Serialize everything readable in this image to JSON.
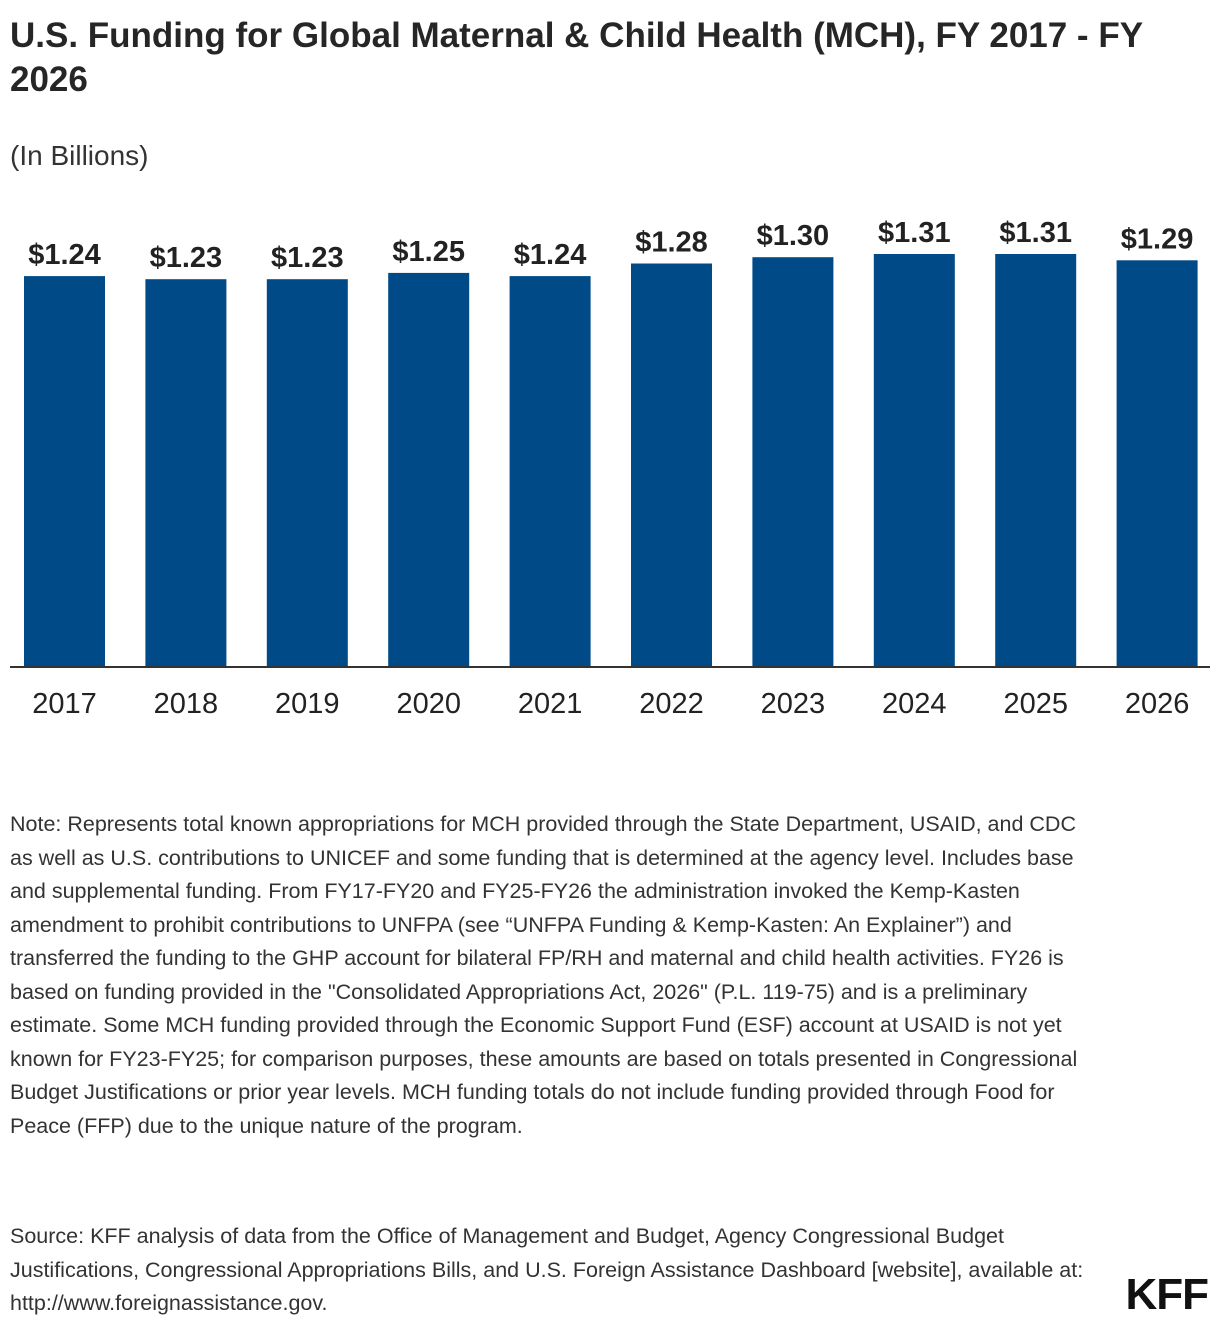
{
  "header": {
    "title": "U.S. Funding for Global Maternal & Child Health (MCH), FY 2017 - FY 2026",
    "subtitle": "(In Billions)"
  },
  "colors": {
    "bar": "#004A87"
  },
  "chart_data": {
    "type": "bar",
    "title": "U.S. Funding for Global Maternal & Child Health (MCH), FY 2017 - FY 2026",
    "subtitle": "(In Billions)",
    "categories": [
      "2017",
      "2018",
      "2019",
      "2020",
      "2021",
      "2022",
      "2023",
      "2024",
      "2025",
      "2026"
    ],
    "values": [
      1.24,
      1.23,
      1.23,
      1.25,
      1.24,
      1.28,
      1.3,
      1.31,
      1.31,
      1.29
    ],
    "data_labels": [
      "$1.24",
      "$1.23",
      "$1.23",
      "$1.25",
      "$1.24",
      "$1.28",
      "$1.30",
      "$1.31",
      "$1.31",
      "$1.29"
    ],
    "ylim": [
      0,
      1.31
    ],
    "grid": false
  },
  "footer": {
    "note": "Note: Represents total known appropriations for MCH provided through the State Department, USAID, and CDC as well as U.S. contributions to UNICEF and some funding that is determined at the agency level. Includes base and supplemental funding. From FY17-FY20 and FY25-FY26 the administration invoked the Kemp-Kasten amendment to prohibit contributions to UNFPA (see “UNFPA Funding & Kemp-Kasten: An Explainer”) and transferred the funding to the GHP account for bilateral FP/RH and maternal and child health activities. FY26 is based on funding provided in the \"Consolidated Appropriations Act, 2026\" (P.L. 119-75) and is a preliminary estimate. Some MCH funding provided through the Economic Support Fund (ESF) account at USAID is not yet known for FY23-FY25; for comparison purposes, these amounts are based on totals presented in Congressional Budget Justifications or prior year levels. MCH funding totals do not include funding provided through Food for Peace (FFP) due to the unique nature of the program.",
    "source": "Source: KFF analysis of data from the Office of Management and Budget, Agency Congressional Budget Justifications, Congressional Appropriations Bills, and U.S. Foreign Assistance Dashboard [website], available at: http://www.foreignassistance.gov.",
    "logo": "KFF"
  }
}
